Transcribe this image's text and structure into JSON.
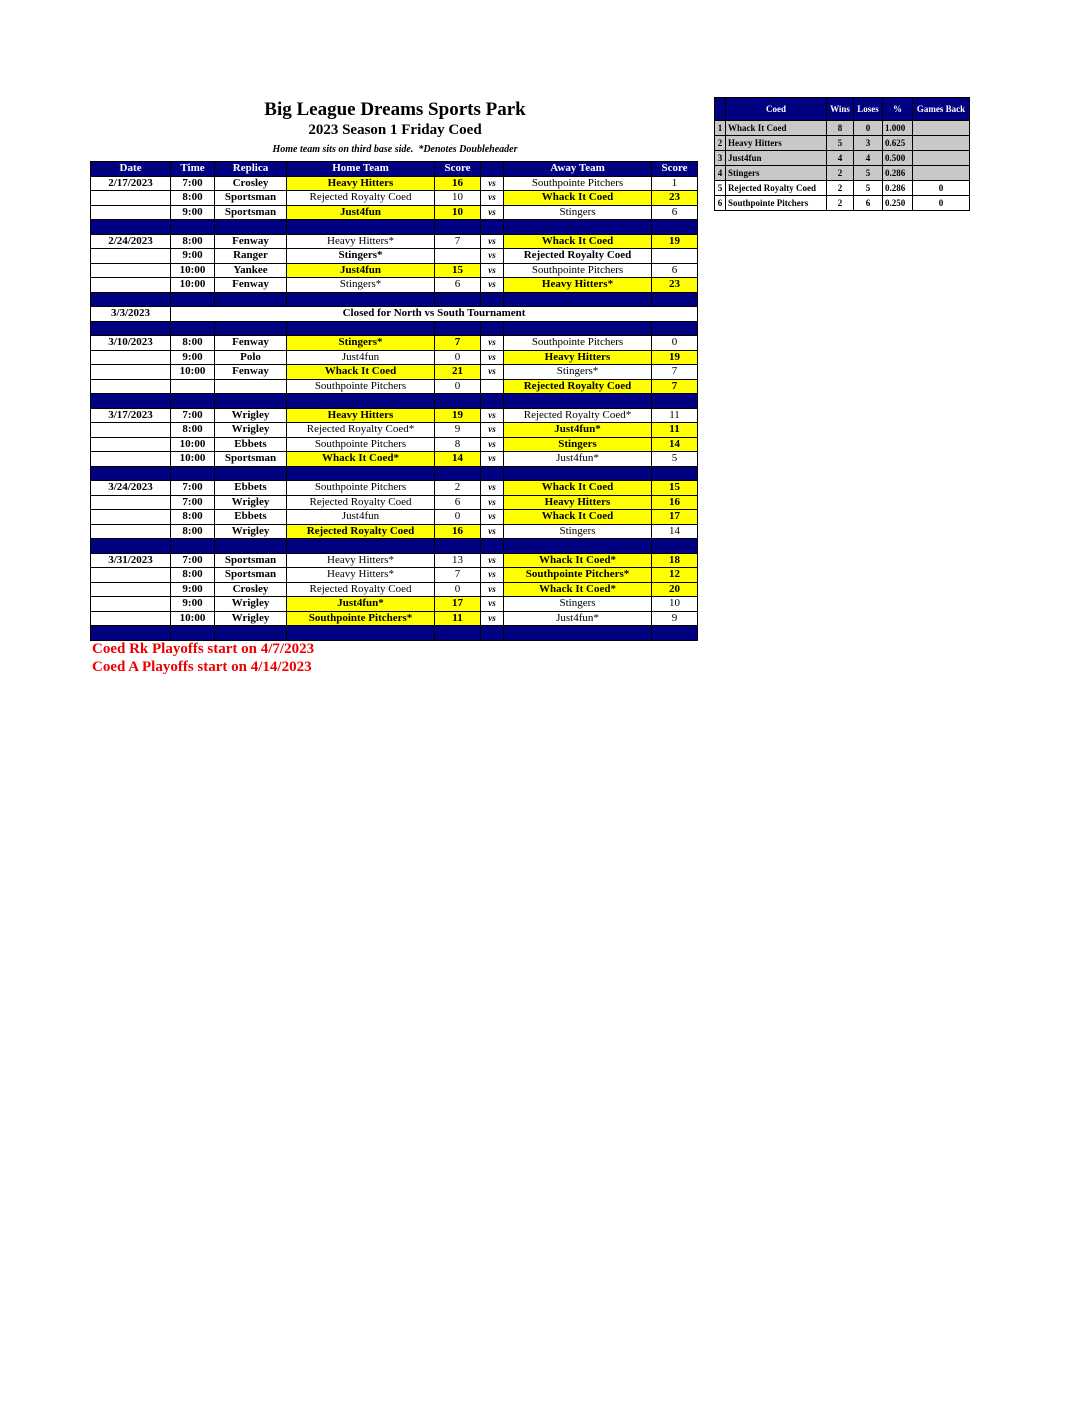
{
  "header": {
    "title": "Big League Dreams Sports Park",
    "subtitle": "2023 Season 1 Friday Coed",
    "note": "Home team sits on third base side.  *Denotes Doubleheader"
  },
  "schedule": {
    "columns": [
      "Date",
      "Time",
      "Replica",
      "Home Team",
      "Score",
      "Away Team",
      "Score"
    ],
    "groups": [
      {
        "date": "2/17/2023",
        "games": [
          {
            "time": "7:00",
            "field": "Crosley",
            "home": "Heavy Hitters",
            "home_score": 16,
            "vs": "vs",
            "away": "Southpointe Pitchers",
            "away_score": 1,
            "highlight": "home"
          },
          {
            "time": "8:00",
            "field": "Sportsman",
            "home": "Rejected Royalty Coed",
            "home_score": 10,
            "vs": "vs",
            "away": "Whack It Coed",
            "away_score": 23,
            "highlight": "away"
          },
          {
            "time": "9:00",
            "field": "Sportsman",
            "home": "Just4fun",
            "home_score": 10,
            "vs": "vs",
            "away": "Stingers",
            "away_score": 6,
            "highlight": "home"
          }
        ]
      },
      {
        "date": "2/24/2023",
        "games": [
          {
            "time": "8:00",
            "field": "Fenway",
            "home": "Heavy Hitters*",
            "home_score": 7,
            "vs": "vs",
            "away": "Whack It Coed",
            "away_score": 19,
            "highlight": "away"
          },
          {
            "time": "9:00",
            "field": "Ranger",
            "home": "Stingers*",
            "vs": "vs",
            "away": "Rejected Royalty Coed",
            "highlight": "none"
          },
          {
            "time": "10:00",
            "field": "Yankee",
            "home": "Just4fun",
            "home_score": 15,
            "vs": "vs",
            "away": "Southpointe Pitchers",
            "away_score": 6,
            "highlight": "home"
          },
          {
            "time": "10:00",
            "field": "Fenway",
            "home": "Stingers*",
            "home_score": 6,
            "vs": "vs",
            "away": "Heavy Hitters*",
            "away_score": 23,
            "highlight": "away"
          }
        ]
      },
      {
        "date": "3/3/2023",
        "note": "Closed for North vs South Tournament"
      },
      {
        "date": "3/10/2023",
        "games": [
          {
            "time": "8:00",
            "field": "Fenway",
            "home": "Stingers*",
            "home_score": 7,
            "vs": "vs",
            "away": "Southpointe Pitchers",
            "away_score": 0,
            "highlight": "home"
          },
          {
            "time": "9:00",
            "field": "Polo",
            "home": "Just4fun",
            "home_score": 0,
            "vs": "vs",
            "away": "Heavy Hitters",
            "away_score": 19,
            "highlight": "away"
          },
          {
            "time": "10:00",
            "field": "Fenway",
            "home": "Whack It Coed",
            "home_score": 21,
            "vs": "vs",
            "away": "Stingers*",
            "away_score": 7,
            "highlight": "home"
          },
          {
            "home": "Southpointe Pitchers",
            "home_score": 0,
            "away": "Rejected Royalty Coed",
            "away_score": 7,
            "highlight": "away"
          }
        ]
      },
      {
        "date": "3/17/2023",
        "games": [
          {
            "time": "7:00",
            "field": "Wrigley",
            "home": "Heavy Hitters",
            "home_score": 19,
            "vs": "vs",
            "away": "Rejected Royalty Coed*",
            "away_score": 11,
            "highlight": "home"
          },
          {
            "time": "8:00",
            "field": "Wrigley",
            "home": "Rejected Royalty Coed*",
            "home_score": 9,
            "vs": "vs",
            "away": "Just4fun*",
            "away_score": 11,
            "highlight": "away"
          },
          {
            "time": "10:00",
            "field": "Ebbets",
            "home": "Southpointe Pitchers",
            "home_score": 8,
            "vs": "vs",
            "away": "Stingers",
            "away_score": 14,
            "highlight": "away"
          },
          {
            "time": "10:00",
            "field": "Sportsman",
            "home": "Whack It Coed*",
            "home_score": 14,
            "vs": "vs",
            "away": "Just4fun*",
            "away_score": 5,
            "highlight": "home"
          }
        ]
      },
      {
        "date": "3/24/2023",
        "games": [
          {
            "time": "7:00",
            "field": "Ebbets",
            "home": "Southpointe Pitchers",
            "home_score": 2,
            "vs": "vs",
            "away": "Whack It Coed",
            "away_score": 15,
            "highlight": "away"
          },
          {
            "time": "7:00",
            "field": "Wrigley",
            "home": "Rejected Royalty Coed",
            "home_score": 6,
            "vs": "vs",
            "away": "Heavy Hitters",
            "away_score": 16,
            "highlight": "away"
          },
          {
            "time": "8:00",
            "field": "Ebbets",
            "home": "Just4fun",
            "home_score": 0,
            "vs": "vs",
            "away": "Whack It Coed",
            "away_score": 17,
            "highlight": "away"
          },
          {
            "time": "8:00",
            "field": "Wrigley",
            "home": "Rejected Royalty Coed",
            "home_score": 16,
            "vs": "vs",
            "away": "Stingers",
            "away_score": 14,
            "highlight": "home"
          }
        ]
      },
      {
        "date": "3/31/2023",
        "games": [
          {
            "time": "7:00",
            "field": "Sportsman",
            "home": "Heavy Hitters*",
            "home_score": 13,
            "vs": "vs",
            "away": "Whack It Coed*",
            "away_score": 18,
            "highlight": "away"
          },
          {
            "time": "8:00",
            "field": "Sportsman",
            "home": "Heavy Hitters*",
            "home_score": 7,
            "vs": "vs",
            "away": "Southpointe Pitchers*",
            "away_score": 12,
            "highlight": "away"
          },
          {
            "time": "9:00",
            "field": "Crosley",
            "home": "Rejected Royalty Coed",
            "home_score": 0,
            "vs": "vs",
            "away": "Whack It Coed*",
            "away_score": 20,
            "highlight": "away"
          },
          {
            "time": "9:00",
            "field": "Wrigley",
            "home": "Just4fun*",
            "home_score": 17,
            "vs": "vs",
            "away": "Stingers",
            "away_score": 10,
            "highlight": "home"
          },
          {
            "time": "10:00",
            "field": "Wrigley",
            "home": "Southpointe Pitchers*",
            "home_score": 11,
            "vs": "vs",
            "away": "Just4fun*",
            "away_score": 9,
            "highlight": "home"
          }
        ]
      }
    ]
  },
  "footnotes": [
    "Coed Rk Playoffs start on 4/7/2023",
    "Coed A Playoffs start on 4/14/2023"
  ],
  "standings": {
    "columns": [
      "Coed",
      "Wins",
      "Loses",
      "%",
      "Games Back"
    ],
    "rows": [
      {
        "rank": 1,
        "team": "Whack It Coed",
        "wins": 8,
        "loses": 0,
        "pct": "1.000",
        "shaded": true
      },
      {
        "rank": 2,
        "team": "Heavy Hitters",
        "wins": 5,
        "loses": 3,
        "pct": "0.625",
        "shaded": true
      },
      {
        "rank": 3,
        "team": "Just4fun",
        "wins": 4,
        "loses": 4,
        "pct": "0.500",
        "shaded": true
      },
      {
        "rank": 4,
        "team": "Stingers",
        "wins": 2,
        "loses": 5,
        "pct": "0.286",
        "shaded": true
      },
      {
        "rank": 5,
        "team": "Rejected Royalty Coed",
        "wins": 2,
        "loses": 5,
        "pct": "0.286",
        "games_back": 0,
        "shaded": false
      },
      {
        "rank": 6,
        "team": "Southpointe Pitchers",
        "wins": 2,
        "loses": 6,
        "pct": "0.250",
        "games_back": 0,
        "shaded": false
      }
    ]
  }
}
